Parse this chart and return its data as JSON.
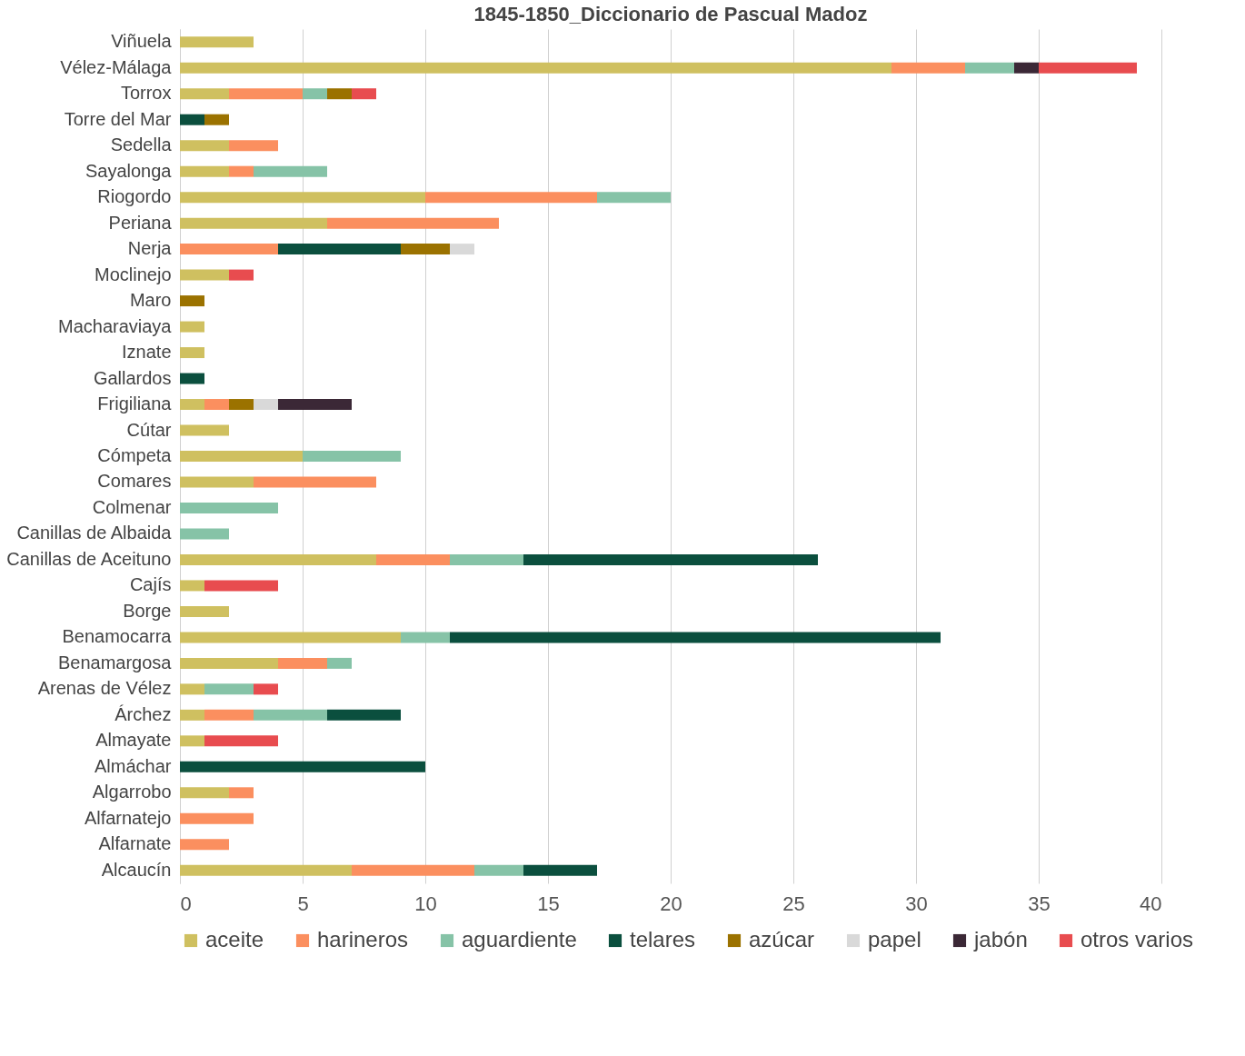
{
  "chart_data": {
    "type": "bar",
    "title": "1845-1850_Diccionario de Pascual Madoz",
    "orientation": "horizontal",
    "stacked": true,
    "categories": [
      "Viñuela",
      "Vélez-Málaga",
      "Torrox",
      "Torre del Mar",
      "Sedella",
      "Sayalonga",
      "Riogordo",
      "Periana",
      "Nerja",
      "Moclinejo",
      "Maro",
      "Macharaviaya",
      "Iznate",
      "Gallardos",
      "Frigiliana",
      "Cútar",
      "Cómpeta",
      "Comares",
      "Colmenar",
      "Canillas de Albaida",
      "Canillas de Aceituno",
      "Cajís",
      "Borge",
      "Benamocarra",
      "Benamargosa",
      "Arenas de Vélez",
      "Árchez",
      "Almayate",
      "Almáchar",
      "Algarrobo",
      "Alfarnatejo",
      "Alfarnate",
      "Alcaucín"
    ],
    "series": [
      {
        "name": "aceite",
        "color": "#cfc060",
        "values": [
          3,
          29,
          2,
          null,
          2,
          2,
          10,
          6,
          null,
          2,
          null,
          1,
          1,
          null,
          1,
          2,
          5,
          3,
          null,
          null,
          8,
          1,
          2,
          9,
          4,
          1,
          1,
          1,
          null,
          2,
          null,
          null,
          7
        ]
      },
      {
        "name": "harineros",
        "color": "#fb8f5f",
        "values": [
          null,
          3,
          3,
          null,
          2,
          1,
          7,
          7,
          4,
          null,
          null,
          null,
          null,
          null,
          1,
          null,
          null,
          5,
          null,
          null,
          3,
          null,
          null,
          null,
          2,
          null,
          2,
          null,
          null,
          1,
          3,
          2,
          5
        ]
      },
      {
        "name": "aguardiente",
        "color": "#86c3a7",
        "values": [
          null,
          2,
          1,
          null,
          null,
          3,
          3,
          null,
          null,
          null,
          null,
          null,
          null,
          null,
          null,
          null,
          4,
          null,
          4,
          2,
          3,
          null,
          null,
          2,
          1,
          2,
          3,
          null,
          null,
          null,
          null,
          null,
          2
        ]
      },
      {
        "name": "telares",
        "color": "#0b4f3e",
        "values": [
          null,
          null,
          null,
          1,
          null,
          null,
          null,
          null,
          5,
          null,
          null,
          null,
          null,
          1,
          null,
          null,
          null,
          null,
          null,
          null,
          12,
          null,
          null,
          20,
          null,
          null,
          3,
          null,
          10,
          null,
          null,
          null,
          3
        ]
      },
      {
        "name": "azúcar",
        "color": "#9b7200",
        "values": [
          null,
          null,
          1,
          1,
          null,
          null,
          null,
          null,
          2,
          null,
          1,
          null,
          null,
          null,
          1,
          null,
          null,
          null,
          null,
          null,
          null,
          null,
          null,
          null,
          null,
          null,
          null,
          null,
          null,
          null,
          null,
          null,
          null
        ]
      },
      {
        "name": "papel",
        "color": "#d9d9d9",
        "values": [
          null,
          null,
          null,
          null,
          null,
          null,
          null,
          null,
          1,
          null,
          null,
          null,
          null,
          null,
          1,
          null,
          null,
          null,
          null,
          null,
          null,
          null,
          null,
          null,
          null,
          null,
          null,
          null,
          null,
          null,
          null,
          null,
          null
        ]
      },
      {
        "name": "jabón",
        "color": "#3b2836",
        "values": [
          null,
          1,
          null,
          null,
          null,
          null,
          null,
          null,
          null,
          null,
          null,
          null,
          null,
          null,
          3,
          null,
          null,
          null,
          null,
          null,
          null,
          null,
          null,
          null,
          null,
          null,
          null,
          null,
          null,
          null,
          null,
          null,
          null
        ]
      },
      {
        "name": "otros varios",
        "color": "#e84c4f",
        "values": [
          null,
          4,
          1,
          null,
          null,
          null,
          null,
          null,
          null,
          1,
          null,
          null,
          null,
          null,
          null,
          null,
          null,
          null,
          null,
          null,
          null,
          3,
          null,
          null,
          null,
          1,
          null,
          3,
          null,
          null,
          null,
          null,
          null
        ]
      }
    ],
    "xlim": [
      0,
      40
    ],
    "xticks": [
      0,
      5,
      10,
      15,
      20,
      25,
      30,
      35,
      40
    ],
    "grid": "x",
    "legend": "bottom"
  }
}
